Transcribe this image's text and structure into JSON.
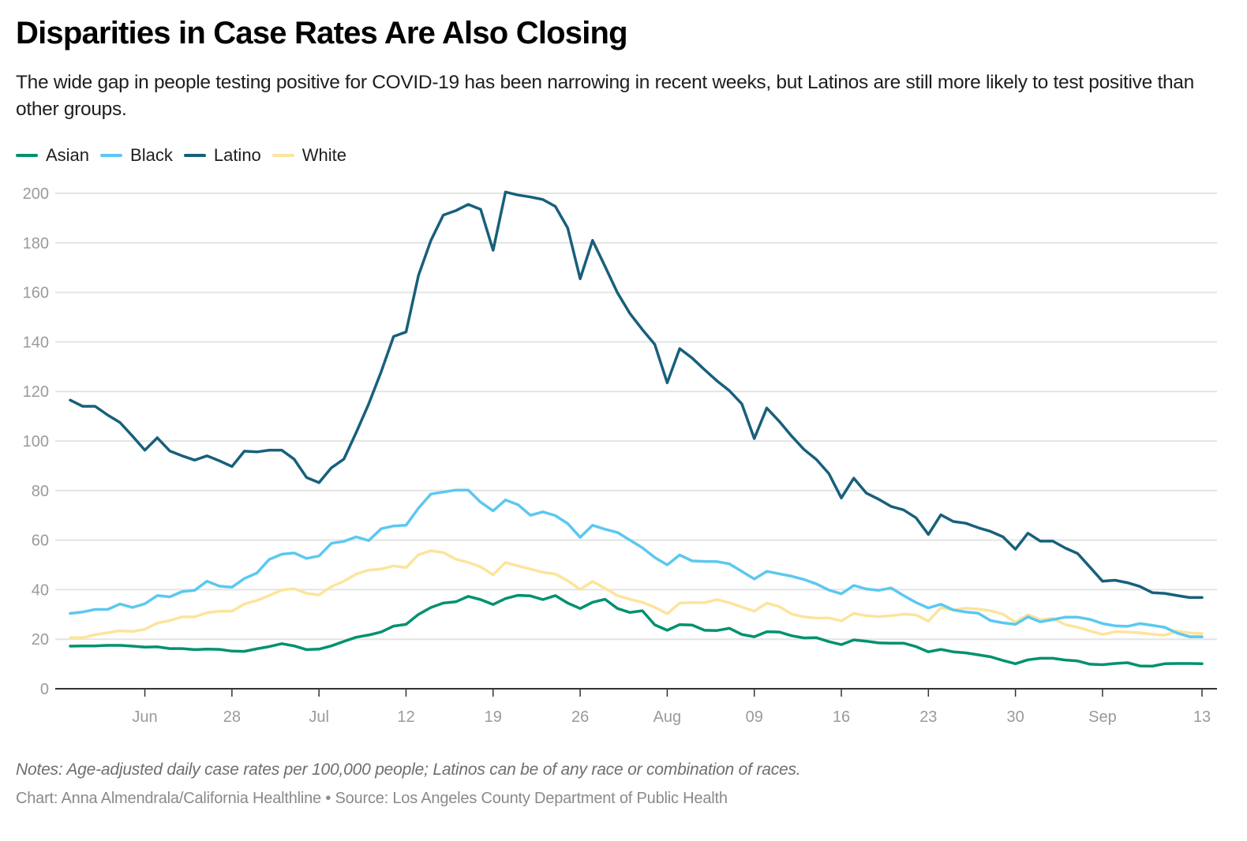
{
  "header": {
    "title": "Disparities in Case Rates Are Also Closing",
    "subtitle": "The wide gap in people testing positive for COVID-19 has been narrowing in recent weeks, but Latinos are still more likely to test positive than other groups."
  },
  "footer": {
    "notes": "Notes: Age-adjusted daily case rates per 100,000 people; Latinos can be of any race or combination of races.",
    "credit": "Chart: Anna Almendrala/California Healthline • Source: Los Angeles County Department of Public Health"
  },
  "chart_data": {
    "type": "line",
    "title": "Disparities in Case Rates Are Also Closing",
    "xlabel": "",
    "ylabel": "",
    "ylim": [
      0,
      200
    ],
    "yticks": [
      0,
      20,
      40,
      60,
      80,
      100,
      120,
      140,
      160,
      180,
      200
    ],
    "grid": true,
    "legend_position": "top-left",
    "x_ticks": [
      {
        "label": "Jun",
        "index": 6
      },
      {
        "label": "28",
        "index": 13
      },
      {
        "label": "Jul",
        "index": 20
      },
      {
        "label": "12",
        "index": 27
      },
      {
        "label": "19",
        "index": 34
      },
      {
        "label": "26",
        "index": 41
      },
      {
        "label": "Aug",
        "index": 48
      },
      {
        "label": "09",
        "index": 55
      },
      {
        "label": "16",
        "index": 62
      },
      {
        "label": "23",
        "index": 69
      },
      {
        "label": "30",
        "index": 76
      },
      {
        "label": "Sep",
        "index": 83
      },
      {
        "label": "13",
        "index": 91
      }
    ],
    "series": [
      {
        "name": "Asian",
        "color": "#00916e",
        "values": [
          17.2,
          17.3,
          17.3,
          17.5,
          17.5,
          17.2,
          16.8,
          16.9,
          16.2,
          16.2,
          15.8,
          16.0,
          15.9,
          15.2,
          15.1,
          16.1,
          17.0,
          18.2,
          17.3,
          15.8,
          16.0,
          17.3,
          19.1,
          20.8,
          21.7,
          22.9,
          25.3,
          26.0,
          30.0,
          32.8,
          34.6,
          35.1,
          37.3,
          36.0,
          34.0,
          36.4,
          37.7,
          37.5,
          36.0,
          37.6,
          34.6,
          32.4,
          34.9,
          36.1,
          32.4,
          30.8,
          31.5,
          25.8,
          23.6,
          25.9,
          25.7,
          23.6,
          23.5,
          24.4,
          21.9,
          21.0,
          23.0,
          22.9,
          21.4,
          20.5,
          20.6,
          19.0,
          17.8,
          19.7,
          19.2,
          18.5,
          18.4,
          18.4,
          17.0,
          14.9,
          15.9,
          14.9,
          14.5,
          13.7,
          12.9,
          11.4,
          10.1,
          11.7,
          12.3,
          12.3,
          11.6,
          11.2,
          9.9,
          9.7,
          10.2,
          10.5,
          9.2,
          9.1,
          10.1,
          10.2,
          10.2,
          10.1
        ]
      },
      {
        "name": "Black",
        "color": "#5bc8f0",
        "values": [
          30.4,
          31.0,
          32.0,
          32.0,
          34.2,
          32.8,
          34.3,
          37.6,
          37.1,
          39.2,
          39.7,
          43.4,
          41.4,
          41.0,
          44.5,
          46.7,
          52.2,
          54.3,
          54.8,
          52.6,
          53.6,
          58.7,
          59.5,
          61.3,
          59.8,
          64.6,
          65.7,
          66.0,
          72.9,
          78.6,
          79.4,
          80.2,
          80.2,
          75.3,
          71.8,
          76.2,
          74.3,
          70.0,
          71.4,
          69.9,
          66.7,
          61.1,
          66.0,
          64.4,
          63.1,
          60.0,
          56.9,
          53.0,
          50.0,
          54.0,
          51.6,
          51.4,
          51.3,
          50.4,
          47.4,
          44.3,
          47.4,
          46.4,
          45.4,
          44.1,
          42.3,
          39.8,
          38.3,
          41.7,
          40.3,
          39.7,
          40.7,
          37.6,
          34.8,
          32.6,
          34.1,
          31.8,
          31.0,
          30.5,
          27.5,
          26.6,
          26.0,
          29.0,
          27.0,
          27.9,
          28.9,
          28.9,
          28.0,
          26.3,
          25.4,
          25.2,
          26.3,
          25.6,
          24.8,
          22.5,
          21.0,
          21.0
        ]
      },
      {
        "name": "Latino",
        "color": "#17607b",
        "values": [
          116.5,
          114.0,
          114.0,
          110.5,
          107.5,
          102.0,
          96.3,
          101.3,
          96.0,
          94.0,
          92.3,
          94.0,
          92.0,
          89.7,
          95.9,
          95.6,
          96.3,
          96.3,
          92.7,
          85.3,
          83.2,
          89.2,
          92.7,
          103.5,
          115.0,
          128.0,
          142.2,
          144.0,
          166.8,
          181.0,
          191.2,
          193.0,
          195.5,
          193.5,
          177.0,
          200.5,
          199.3,
          198.5,
          197.5,
          194.7,
          186.0,
          165.5,
          181.0,
          170.5,
          159.8,
          151.5,
          145.0,
          139.0,
          123.5,
          137.3,
          133.5,
          128.8,
          124.3,
          120.3,
          115.0,
          101.0,
          113.3,
          108.0,
          102.0,
          96.6,
          92.5,
          86.8,
          77.0,
          85.0,
          79.0,
          76.5,
          73.6,
          72.2,
          69.0,
          62.3,
          70.2,
          67.5,
          66.8,
          65.0,
          63.5,
          61.3,
          56.3,
          62.8,
          59.6,
          59.6,
          56.8,
          54.6,
          49.0,
          43.4,
          43.8,
          42.8,
          41.3,
          38.8,
          38.5,
          37.6,
          36.8,
          36.8
        ]
      },
      {
        "name": "White",
        "color": "#fde49c",
        "values": [
          20.6,
          20.6,
          21.8,
          22.6,
          23.4,
          23.1,
          24.0,
          26.5,
          27.5,
          29.0,
          29.0,
          30.7,
          31.3,
          31.3,
          34.2,
          35.6,
          37.6,
          39.8,
          40.4,
          38.5,
          37.9,
          41.2,
          43.4,
          46.3,
          47.9,
          48.3,
          49.6,
          48.9,
          54.1,
          55.7,
          55.0,
          52.3,
          51.0,
          49.2,
          46.0,
          51.0,
          49.6,
          48.3,
          47.0,
          46.3,
          43.6,
          40.1,
          43.3,
          40.5,
          37.6,
          36.1,
          34.9,
          32.9,
          30.3,
          34.6,
          34.8,
          34.7,
          36.0,
          34.7,
          33.0,
          31.3,
          34.6,
          33.2,
          30.2,
          29.0,
          28.5,
          28.6,
          27.4,
          30.4,
          29.5,
          29.1,
          29.5,
          30.1,
          29.8,
          27.3,
          32.7,
          31.8,
          32.5,
          32.2,
          31.5,
          30.1,
          26.8,
          29.9,
          27.9,
          28.4,
          25.9,
          24.8,
          23.3,
          21.9,
          23.0,
          22.9,
          22.6,
          22.0,
          21.6,
          23.3,
          22.5,
          22.3
        ]
      }
    ]
  }
}
